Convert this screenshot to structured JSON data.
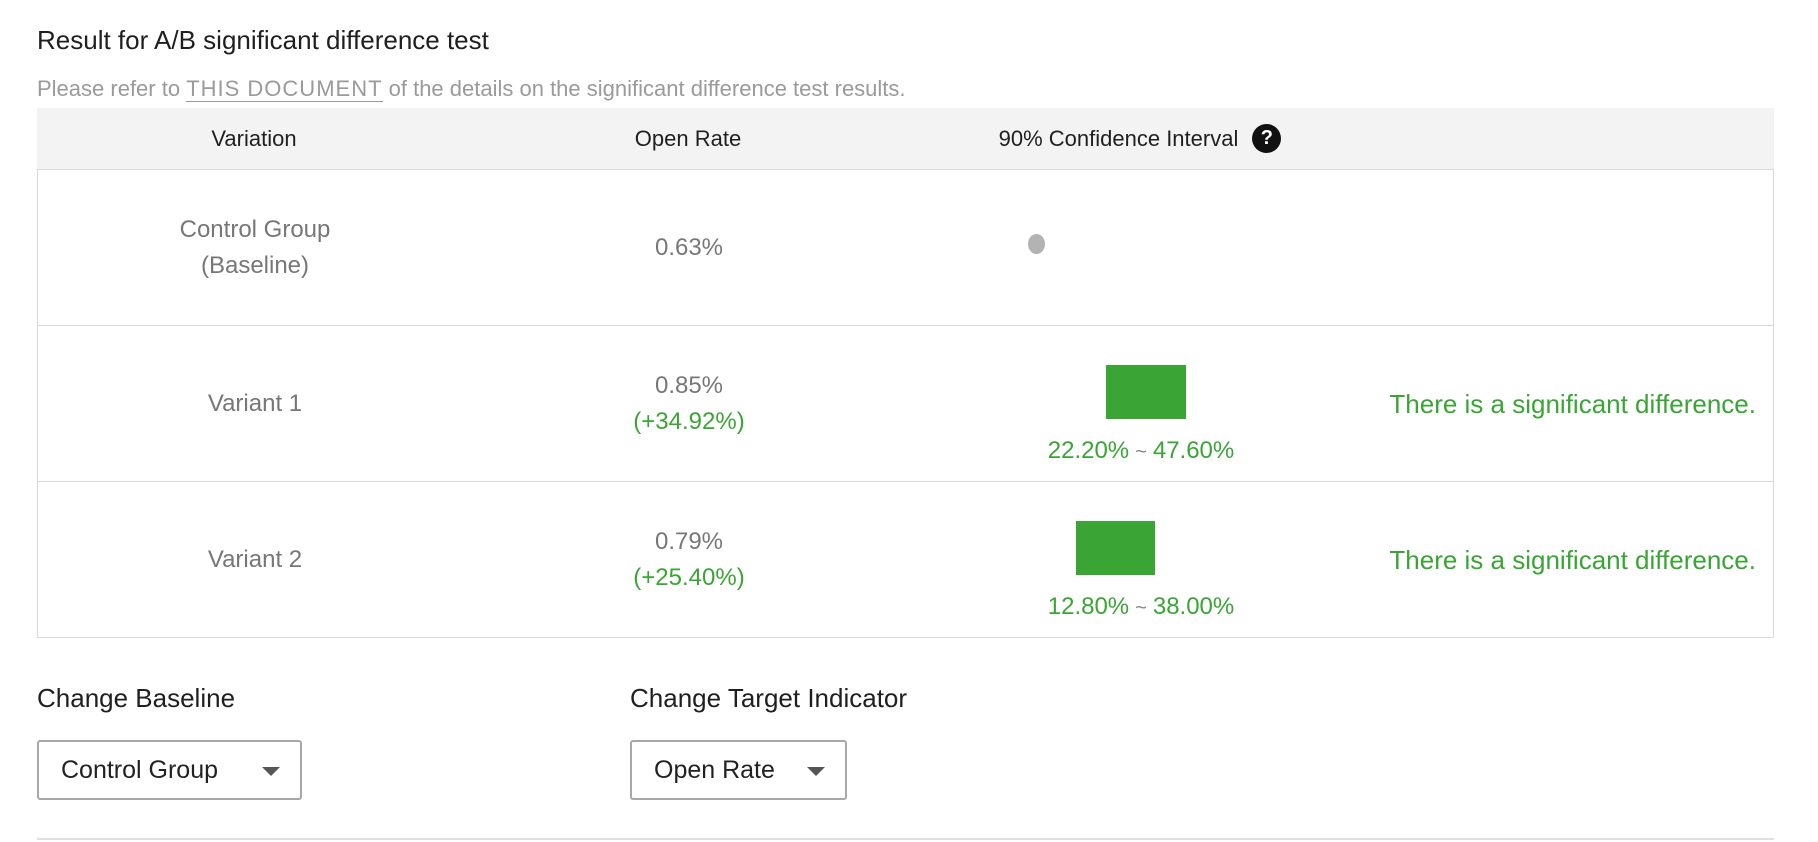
{
  "header": {
    "title": "Result for A/B significant difference test",
    "subtitle_prefix": "Please refer to ",
    "subtitle_link": "THIS DOCUMENT",
    "subtitle_suffix": " of the details on the significant difference test results."
  },
  "table": {
    "columns": {
      "variation": "Variation",
      "open_rate": "Open Rate",
      "ci": "90% Confidence Interval",
      "help_glyph": "?"
    },
    "rows": [
      {
        "variation_line1": "Control Group",
        "variation_line2": "(Baseline)",
        "rate": "0.63%",
        "lift": "",
        "ci_low": "",
        "ci_high": "",
        "ci_low_value": null,
        "ci_high_value": null,
        "result": ""
      },
      {
        "variation_line1": "Variant 1",
        "variation_line2": "",
        "rate": "0.85%",
        "lift": "(+34.92%)",
        "ci_low": "22.20%",
        "ci_high": "47.60%",
        "ci_low_value": 22.2,
        "ci_high_value": 47.6,
        "result": "There is a significant difference."
      },
      {
        "variation_line1": "Variant 2",
        "variation_line2": "",
        "rate": "0.79%",
        "lift": "(+25.40%)",
        "ci_low": "12.80%",
        "ci_high": "38.00%",
        "ci_low_value": 12.8,
        "ci_high_value": 38.0,
        "result": "There is a significant difference."
      }
    ],
    "ci_separator": "~"
  },
  "controls": {
    "baseline_label": "Change Baseline",
    "baseline_value": "Control Group",
    "target_label": "Change Target Indicator",
    "target_value": "Open Rate"
  },
  "colors": {
    "positive": "#3aa535",
    "muted": "#777777",
    "baseline_dot": "#b3b3b3"
  },
  "icons": {
    "help": "help-circle-icon",
    "dropdown": "chevron-down-icon"
  }
}
